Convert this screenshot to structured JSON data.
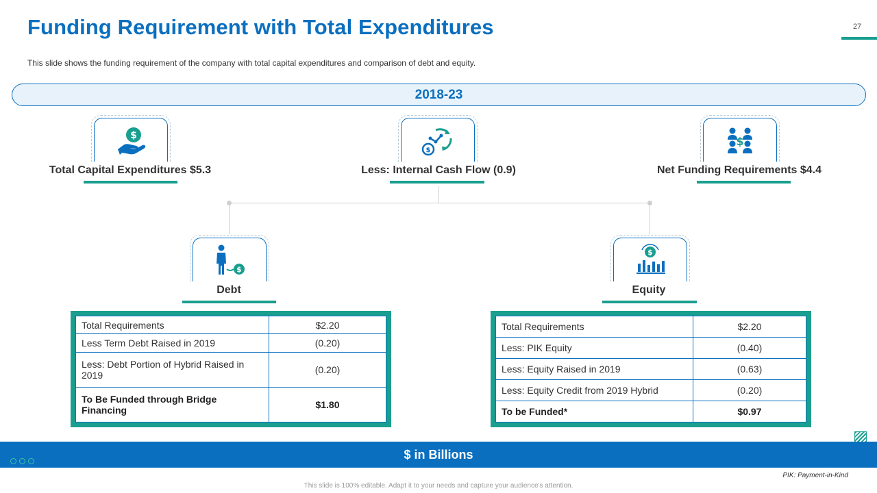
{
  "header": {
    "title": "Funding Requirement with Total Expenditures",
    "page_number": "27",
    "subtitle": "This slide shows the funding requirement  of the company with total capital expenditures and comparison of debt and equity."
  },
  "period": "2018-23",
  "top_items": [
    {
      "label": "Total Capital Expenditures $5.3",
      "icon": "hand-dollar-icon"
    },
    {
      "label": "Less: Internal Cash Flow (0.9)",
      "icon": "cash-cycle-icon"
    },
    {
      "label": "Net Funding Requirements $4.4",
      "icon": "team-dollar-icon"
    }
  ],
  "debt": {
    "label": "Debt",
    "icon": "person-dollar-icon",
    "rows": [
      {
        "item": "Total Requirements",
        "value": "$2.20"
      },
      {
        "item": "Less Term Debt Raised in 2019",
        "value": "(0.20)"
      },
      {
        "item": "Less: Debt Portion of Hybrid Raised in 2019",
        "value": "(0.20)"
      },
      {
        "item": "To Be Funded through Bridge Financing",
        "value": "$1.80"
      }
    ]
  },
  "equity": {
    "label": "Equity",
    "icon": "chart-dollar-icon",
    "rows": [
      {
        "item": "Total Requirements",
        "value": "$2.20"
      },
      {
        "item": "Less: PIK Equity",
        "value": "(0.40)"
      },
      {
        "item": "Less: Equity Raised in 2019",
        "value": "(0.63)"
      },
      {
        "item": "Less: Equity Credit from 2019 Hybrid",
        "value": "(0.20)"
      },
      {
        "item": "To be Funded*",
        "value": "$0.97"
      }
    ]
  },
  "footer": {
    "band_text": "$ in Billions",
    "note": "PIK: Payment-in-Kind",
    "editable_note": "This slide is 100% editable. Adapt it to your needs and capture your audience's attention."
  },
  "colors": {
    "primary_blue": "#0b6fbf",
    "teal": "#1a9e8f"
  }
}
